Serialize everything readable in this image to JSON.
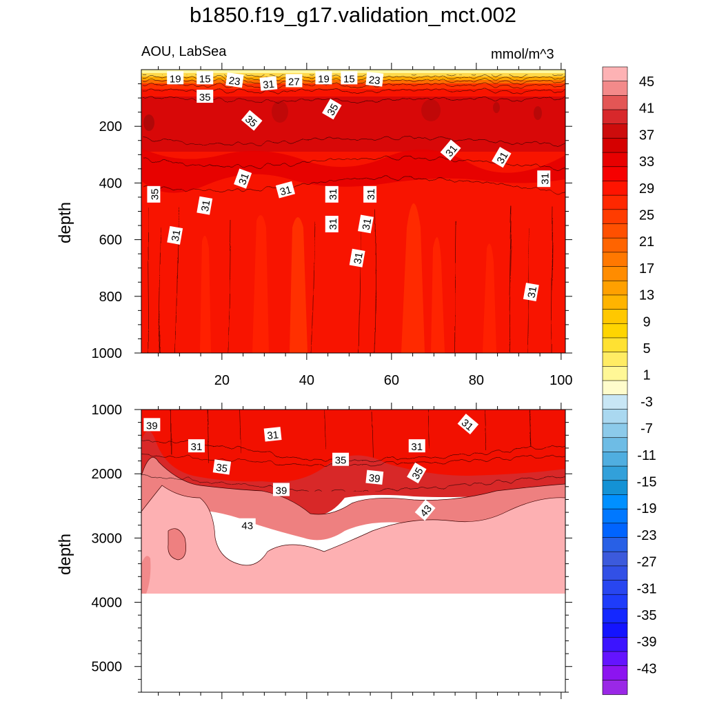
{
  "title": "b1850.f19_g17.validation_mct.002",
  "left_label": "AOU, LabSea",
  "right_label": "mmol/m^3",
  "chart_data": [
    {
      "type": "contour",
      "panel": "upper",
      "ylabel": "depth",
      "ylim": [
        1000,
        0
      ],
      "xlim": [
        1,
        101
      ],
      "yticks": [
        200,
        400,
        600,
        800,
        1000
      ],
      "xticks": [
        20,
        40,
        60,
        80,
        100
      ],
      "contour_labels": [
        {
          "x": 9,
          "y": 30,
          "text": "19"
        },
        {
          "x": 16,
          "y": 30,
          "text": "15"
        },
        {
          "x": 23,
          "y": 38,
          "text": "23"
        },
        {
          "x": 31,
          "y": 50,
          "text": "31"
        },
        {
          "x": 37,
          "y": 40,
          "text": "27"
        },
        {
          "x": 44,
          "y": 30,
          "text": "19"
        },
        {
          "x": 50,
          "y": 30,
          "text": "15"
        },
        {
          "x": 56,
          "y": 35,
          "text": "23"
        },
        {
          "x": 16,
          "y": 95,
          "text": "35"
        },
        {
          "x": 46,
          "y": 140,
          "text": "35"
        },
        {
          "x": 27,
          "y": 180,
          "text": "35"
        },
        {
          "x": 74,
          "y": 285,
          "text": "31"
        },
        {
          "x": 86,
          "y": 310,
          "text": "31"
        },
        {
          "x": 25,
          "y": 385,
          "text": "31"
        },
        {
          "x": 35,
          "y": 425,
          "text": "31"
        },
        {
          "x": 46,
          "y": 440,
          "text": "31"
        },
        {
          "x": 55,
          "y": 440,
          "text": "31"
        },
        {
          "x": 96,
          "y": 385,
          "text": "31"
        },
        {
          "x": 4,
          "y": 440,
          "text": "35"
        },
        {
          "x": 16,
          "y": 480,
          "text": "31"
        },
        {
          "x": 46,
          "y": 545,
          "text": "31"
        },
        {
          "x": 54,
          "y": 545,
          "text": "31"
        },
        {
          "x": 9,
          "y": 585,
          "text": "31"
        },
        {
          "x": 52,
          "y": 665,
          "text": "31"
        },
        {
          "x": 93,
          "y": 785,
          "text": "31"
        }
      ]
    },
    {
      "type": "contour",
      "panel": "lower",
      "ylabel": "depth",
      "ylim": [
        5400,
        1000
      ],
      "xlim": [
        1,
        101
      ],
      "yticks": [
        1000,
        2000,
        3000,
        4000,
        5000
      ],
      "contour_labels": [
        {
          "x": 3.5,
          "y": 1240,
          "text": "39"
        },
        {
          "x": 14,
          "y": 1570,
          "text": "31"
        },
        {
          "x": 20,
          "y": 1900,
          "text": "35"
        },
        {
          "x": 32,
          "y": 1390,
          "text": "31"
        },
        {
          "x": 34,
          "y": 2250,
          "text": "39"
        },
        {
          "x": 26,
          "y": 2800,
          "text": "43"
        },
        {
          "x": 48,
          "y": 1780,
          "text": "35"
        },
        {
          "x": 56,
          "y": 2060,
          "text": "39"
        },
        {
          "x": 66,
          "y": 1570,
          "text": "31"
        },
        {
          "x": 66,
          "y": 1990,
          "text": "35"
        },
        {
          "x": 78,
          "y": 1230,
          "text": "31"
        },
        {
          "x": 68,
          "y": 2570,
          "text": "43"
        }
      ]
    }
  ],
  "colorbar": {
    "labels": [
      "45",
      "41",
      "37",
      "33",
      "29",
      "25",
      "21",
      "17",
      "13",
      "9",
      "5",
      "1",
      "-3",
      "-7",
      "-11",
      "-15",
      "-19",
      "-23",
      "-27",
      "-31",
      "-35",
      "-39",
      "-43"
    ],
    "colors": [
      "#fdb2b4",
      "#f38a8a",
      "#e35655",
      "#d8282b",
      "#cd0c0c",
      "#d50000",
      "#e80000",
      "#f60000",
      "#ff1400",
      "#ff2800",
      "#ff3c00",
      "#ff5000",
      "#ff6400",
      "#ff7800",
      "#ff8c00",
      "#ffa000",
      "#ffb400",
      "#ffc800",
      "#ffd500",
      "#ffe132",
      "#ffec64",
      "#fff796",
      "#fffccc",
      "#c8e6f5",
      "#aad8f0",
      "#8ccaea",
      "#6ebce5",
      "#50aee0",
      "#32a0da",
      "#1492d5",
      "#0090ff",
      "#0078ff",
      "#0064ff",
      "#2860e6",
      "#3c5adc",
      "#3250e6",
      "#2846f0",
      "#1e3cfa",
      "#1428ff",
      "#1414ff",
      "#3c14ff",
      "#6414ff",
      "#8c14f0",
      "#9a28e6"
    ]
  },
  "axis_tick_labels": {
    "upper_y": [
      "200",
      "400",
      "600",
      "800",
      "1000"
    ],
    "upper_x": [
      "20",
      "40",
      "60",
      "80",
      "100"
    ],
    "lower_y": [
      "1000",
      "2000",
      "3000",
      "4000",
      "5000"
    ]
  }
}
